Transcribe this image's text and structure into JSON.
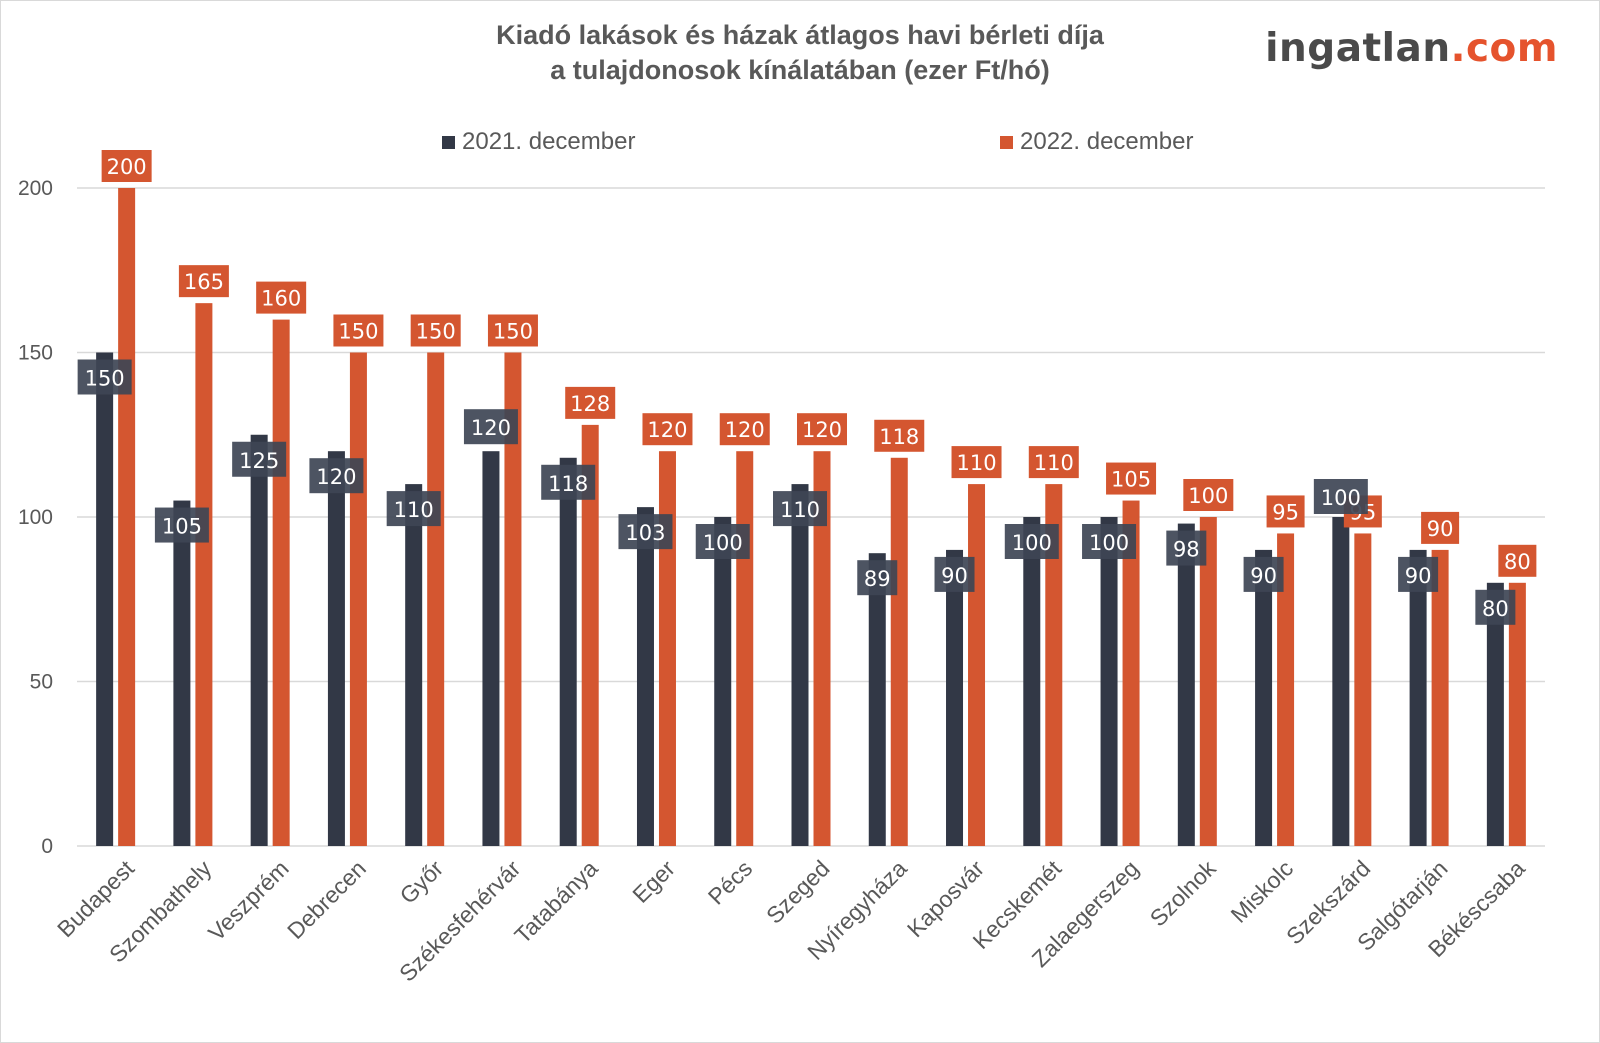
{
  "logo": {
    "part1": "ingatlan",
    "part2": ".com"
  },
  "colors": {
    "series_2021": "#323846",
    "series_2022": "#d45630",
    "label_2021_bg": "#3e4555",
    "grid": "#d9d9d9",
    "text": "#595959"
  },
  "chart_data": {
    "type": "bar",
    "title": "Kiadó lakások és házak átlagos havi bérleti díja",
    "subtitle": "a tulajdonosok kínálatában (ezer Ft/hó)",
    "xlabel": "",
    "ylabel": "",
    "ylim": [
      0,
      200
    ],
    "yticks": [
      0,
      50,
      100,
      150,
      200
    ],
    "grid": true,
    "legend_position": "top",
    "categories": [
      "Budapest",
      "Szombathely",
      "Veszprém",
      "Debrecen",
      "Győr",
      "Székesfehérvár",
      "Tatabánya",
      "Eger",
      "Pécs",
      "Szeged",
      "Nyíregyháza",
      "Kaposvár",
      "Kecskemét",
      "Zalaegerszeg",
      "Szolnok",
      "Miskolc",
      "Szekszárd",
      "Salgótarján",
      "Békéscsaba"
    ],
    "series": [
      {
        "name": "2021. december",
        "values": [
          150,
          105,
          125,
          120,
          110,
          120,
          118,
          103,
          100,
          110,
          89,
          90,
          100,
          100,
          98,
          90,
          100,
          90,
          80
        ]
      },
      {
        "name": "2022. december",
        "values": [
          200,
          165,
          160,
          150,
          150,
          150,
          128,
          120,
          120,
          120,
          118,
          110,
          110,
          105,
          100,
          95,
          95,
          90,
          80
        ]
      }
    ]
  }
}
